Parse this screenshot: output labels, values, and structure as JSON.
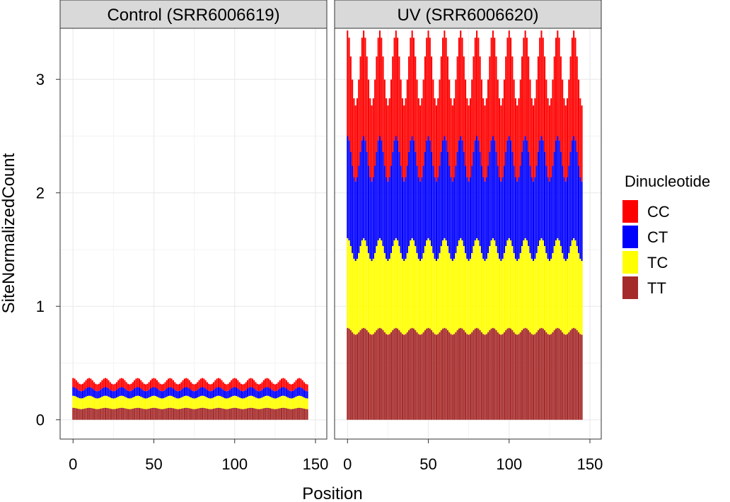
{
  "chart_data": {
    "type": "bar",
    "stacked": true,
    "faceted": true,
    "xlabel": "Position",
    "ylabel": "SiteNormalizedCount",
    "xlim": [
      -8,
      157
    ],
    "ylim": [
      -0.17,
      3.45
    ],
    "x_ticks": [
      0,
      50,
      100,
      150
    ],
    "y_ticks": [
      0,
      1,
      2,
      3
    ],
    "grid": true,
    "legend": {
      "title": "Dinucleotide",
      "placement": "right",
      "entries": [
        "CC",
        "CT",
        "TC",
        "TT"
      ]
    },
    "colors": {
      "CC": "#ff0000",
      "CT": "#0000ff",
      "TC": "#ffff00",
      "TT": "#a52a2a"
    },
    "positions": {
      "start": 0,
      "end": 145,
      "step": 1
    },
    "stack_order_bottom_to_top": [
      "TT",
      "TC",
      "CT",
      "CC"
    ],
    "panels": [
      {
        "title": "Control (SRR6006619)",
        "series": [
          {
            "name": "TT",
            "mean": 0.1,
            "amplitude": 0.006,
            "period": 10
          },
          {
            "name": "TC",
            "mean": 0.1,
            "amplitude": 0.006,
            "period": 10
          },
          {
            "name": "CT",
            "mean": 0.07,
            "amplitude": 0.006,
            "period": 10
          },
          {
            "name": "CC",
            "mean": 0.07,
            "amplitude": 0.01,
            "period": 10
          }
        ]
      },
      {
        "title": "UV (SRR6006620)",
        "series": [
          {
            "name": "TT",
            "mean": 0.78,
            "amplitude": 0.03,
            "period": 10
          },
          {
            "name": "TC",
            "mean": 0.72,
            "amplitude": 0.07,
            "period": 10
          },
          {
            "name": "CT",
            "mean": 0.8,
            "amplitude": 0.1,
            "period": 10
          },
          {
            "name": "CC",
            "mean": 0.8,
            "amplitude": 0.13,
            "period": 10
          }
        ]
      }
    ]
  }
}
